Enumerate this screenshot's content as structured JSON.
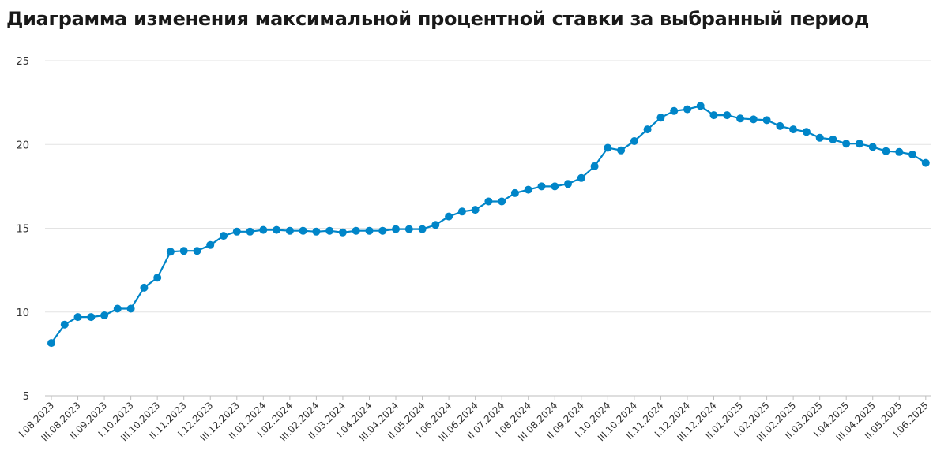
{
  "title": "Диаграмма изменения максимальной процентной ставки за выбранный период",
  "colors": {
    "series": "#0085c8",
    "grid": "#e3e3e3",
    "axis": "#bdbdbd",
    "text": "#333333"
  },
  "chart_data": {
    "type": "line",
    "title": "Диаграмма изменения максимальной процентной ставки за выбранный период",
    "xlabel": "",
    "ylabel": "",
    "ylim": [
      5,
      25
    ],
    "yticks": [
      5,
      10,
      15,
      20,
      25
    ],
    "grid": "horizontal",
    "x_tick_labels": [
      "I.08.2023",
      "III.08.2023",
      "II.09.2023",
      "I.10.2023",
      "III.10.2023",
      "II.11.2023",
      "I.12.2023",
      "III.12.2023",
      "II.01.2024",
      "I.02.2024",
      "III.02.2024",
      "II.03.2024",
      "I.04.2024",
      "III.04.2024",
      "II.05.2024",
      "I.06.2024",
      "III.06.2024",
      "II.07.2024",
      "I.08.2024",
      "III.08.2024",
      "II.09.2024",
      "I.10.2024",
      "III.10.2024",
      "II.11.2024",
      "I.12.2024",
      "III.12.2024",
      "II.01.2025",
      "I.02.2025",
      "III.02.2025",
      "II.03.2025",
      "I.04.2025",
      "III.04.2025",
      "II.05.2025",
      "I.06.2025"
    ],
    "points_per_tick": 2,
    "series": [
      {
        "values": [
          8.15,
          9.25,
          9.7,
          9.7,
          9.8,
          10.2,
          10.2,
          11.45,
          12.05,
          13.6,
          13.65,
          13.65,
          14.0,
          14.55,
          14.8,
          14.8,
          14.9,
          14.9,
          14.85,
          14.85,
          14.8,
          14.85,
          14.75,
          14.85,
          14.85,
          14.85,
          14.95,
          14.95,
          14.95,
          15.2,
          15.7,
          16.0,
          16.1,
          16.6,
          16.6,
          17.1,
          17.3,
          17.5,
          17.5,
          17.65,
          18.0,
          18.7,
          19.8,
          19.65,
          20.2,
          20.9,
          21.6,
          22.0,
          22.1,
          22.3,
          21.75,
          21.75,
          21.55,
          21.5,
          21.45,
          21.1,
          20.9,
          20.75,
          20.4,
          20.3,
          20.05,
          20.05,
          19.85,
          19.6,
          19.55,
          19.4,
          18.9
        ]
      }
    ]
  }
}
